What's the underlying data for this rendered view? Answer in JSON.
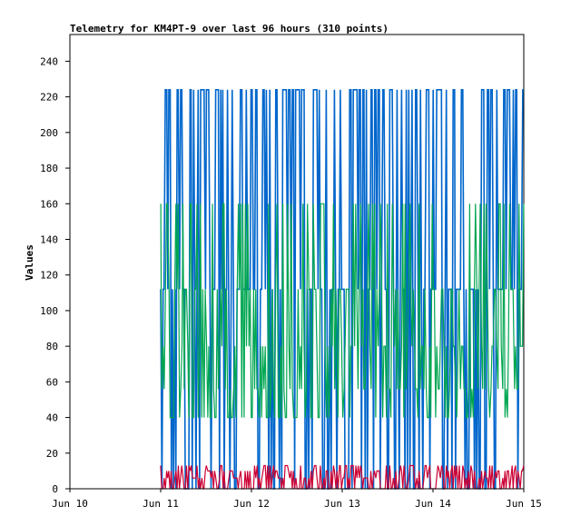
{
  "chart_data": {
    "type": "line",
    "title": "Telemetry for KM4PT-9 over last 96 hours (310 points)",
    "xlabel": "",
    "ylabel": "Values",
    "x_ticks": [
      "Jun 10",
      "Jun 11",
      "Jun 12",
      "Jun 13",
      "Jun 14",
      "Jun 15"
    ],
    "xlim": [
      "Jun 10",
      "Jun 15"
    ],
    "y_ticks": [
      0,
      20,
      40,
      60,
      80,
      100,
      120,
      140,
      160,
      180,
      200,
      220,
      240
    ],
    "ylim": [
      0,
      255
    ],
    "data_start": "Jun 11 00:00",
    "data_end": "Jun 15 00:00",
    "point_count": 310,
    "grid": false,
    "legend": "none",
    "series": [
      {
        "color": "#0066cc",
        "levels": [
          0,
          112,
          224
        ],
        "approx_points": 310
      },
      {
        "color": "#00a651",
        "levels": [
          40,
          56,
          80,
          112,
          160
        ],
        "approx_points": 310
      },
      {
        "color": "#cc0033",
        "levels": [
          0,
          6,
          10,
          13
        ],
        "approx_points": 310
      }
    ]
  }
}
